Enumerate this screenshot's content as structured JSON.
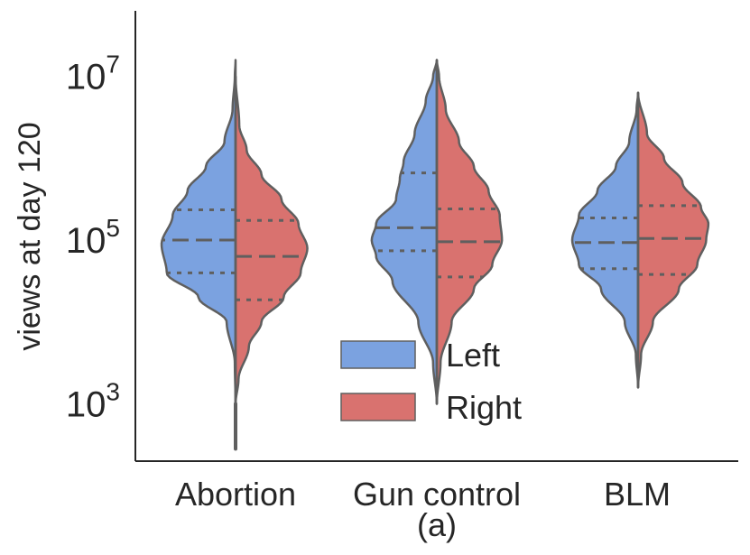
{
  "chart_data": {
    "type": "violin",
    "subtitle": "(a)",
    "xlabel": "",
    "ylabel": "views at day 120",
    "yscale": "log",
    "ylim_log10": [
      2.3,
      7.8
    ],
    "ytick_exponents": [
      3,
      5,
      7
    ],
    "ytick_base": "10",
    "categories": [
      "Abortion",
      "Gun control",
      "BLM"
    ],
    "legend": {
      "position": "lower-center",
      "entries": [
        {
          "name": "Left",
          "label": "Left",
          "color": "#7ba2e0"
        },
        {
          "name": "Right",
          "label": " Right",
          "color": "#d9726f"
        }
      ]
    },
    "colors": {
      "left": "#7ba2e0",
      "right": "#d9726f",
      "outline": "#5f5f5f",
      "axis": "#262626"
    },
    "series": [
      {
        "name": "Left",
        "violins": [
          {
            "category": "Abortion",
            "min_log": 3.0,
            "max_log": 7.2,
            "q1_log": 4.6,
            "median_log": 5.0,
            "q3_log": 5.37,
            "width_profile": [
              [
                3.0,
                0.0
              ],
              [
                3.5,
                0.01
              ],
              [
                4.0,
                0.12
              ],
              [
                4.3,
                0.5
              ],
              [
                4.6,
                0.93
              ],
              [
                4.95,
                1.0
              ],
              [
                5.3,
                0.85
              ],
              [
                5.6,
                0.65
              ],
              [
                5.9,
                0.4
              ],
              [
                6.2,
                0.15
              ],
              [
                6.6,
                0.04
              ],
              [
                7.0,
                0.01
              ],
              [
                7.2,
                0.0
              ]
            ]
          },
          {
            "category": "Gun control",
            "min_log": 3.0,
            "max_log": 7.2,
            "q1_log": 4.87,
            "median_log": 5.15,
            "q3_log": 5.82,
            "width_profile": [
              [
                3.0,
                0.0
              ],
              [
                3.5,
                0.05
              ],
              [
                4.0,
                0.25
              ],
              [
                4.5,
                0.6
              ],
              [
                4.8,
                0.82
              ],
              [
                5.0,
                0.88
              ],
              [
                5.2,
                0.82
              ],
              [
                5.5,
                0.55
              ],
              [
                5.75,
                0.5
              ],
              [
                5.95,
                0.45
              ],
              [
                6.3,
                0.3
              ],
              [
                6.7,
                0.15
              ],
              [
                7.0,
                0.05
              ],
              [
                7.2,
                0.0
              ]
            ]
          },
          {
            "category": "BLM",
            "min_log": 3.2,
            "max_log": 6.8,
            "q1_log": 4.65,
            "median_log": 4.97,
            "q3_log": 5.27,
            "width_profile": [
              [
                3.2,
                0.0
              ],
              [
                3.6,
                0.03
              ],
              [
                4.0,
                0.18
              ],
              [
                4.4,
                0.5
              ],
              [
                4.7,
                0.8
              ],
              [
                5.0,
                0.89
              ],
              [
                5.3,
                0.8
              ],
              [
                5.6,
                0.55
              ],
              [
                5.9,
                0.3
              ],
              [
                6.2,
                0.12
              ],
              [
                6.6,
                0.02
              ],
              [
                6.8,
                0.0
              ]
            ]
          }
        ]
      },
      {
        "name": "Right",
        "violins": [
          {
            "category": "Abortion",
            "min_log": 3.0,
            "max_log": 7.0,
            "q1_log": 4.27,
            "median_log": 4.8,
            "q3_log": 5.24,
            "width_profile": [
              [
                3.0,
                0.0
              ],
              [
                3.3,
                0.04
              ],
              [
                3.7,
                0.18
              ],
              [
                4.0,
                0.35
              ],
              [
                4.3,
                0.65
              ],
              [
                4.6,
                0.88
              ],
              [
                4.9,
                0.97
              ],
              [
                5.2,
                0.85
              ],
              [
                5.5,
                0.62
              ],
              [
                5.8,
                0.35
              ],
              [
                6.1,
                0.15
              ],
              [
                6.4,
                0.05
              ],
              [
                7.0,
                0.0
              ]
            ]
          },
          {
            "category": "Gun control",
            "min_log": 3.0,
            "max_log": 7.2,
            "q1_log": 4.55,
            "median_log": 4.98,
            "q3_log": 5.38,
            "width_profile": [
              [
                3.0,
                0.0
              ],
              [
                3.5,
                0.05
              ],
              [
                4.0,
                0.2
              ],
              [
                4.4,
                0.5
              ],
              [
                4.7,
                0.75
              ],
              [
                5.0,
                0.88
              ],
              [
                5.3,
                0.85
              ],
              [
                5.6,
                0.7
              ],
              [
                5.9,
                0.5
              ],
              [
                6.2,
                0.3
              ],
              [
                6.6,
                0.12
              ],
              [
                7.0,
                0.03
              ],
              [
                7.2,
                0.0
              ]
            ]
          },
          {
            "category": "BLM",
            "min_log": 3.2,
            "max_log": 6.8,
            "q1_log": 4.58,
            "median_log": 5.02,
            "q3_log": 5.42,
            "width_profile": [
              [
                3.2,
                0.0
              ],
              [
                3.6,
                0.04
              ],
              [
                4.0,
                0.2
              ],
              [
                4.4,
                0.55
              ],
              [
                4.7,
                0.8
              ],
              [
                5.0,
                0.92
              ],
              [
                5.2,
                0.95
              ],
              [
                5.4,
                0.85
              ],
              [
                5.7,
                0.6
              ],
              [
                6.0,
                0.35
              ],
              [
                6.3,
                0.12
              ],
              [
                6.8,
                0.0
              ]
            ]
          }
        ]
      }
    ],
    "extra_tail": {
      "category": "Abortion",
      "side": "Left",
      "min_log": 2.45
    }
  }
}
